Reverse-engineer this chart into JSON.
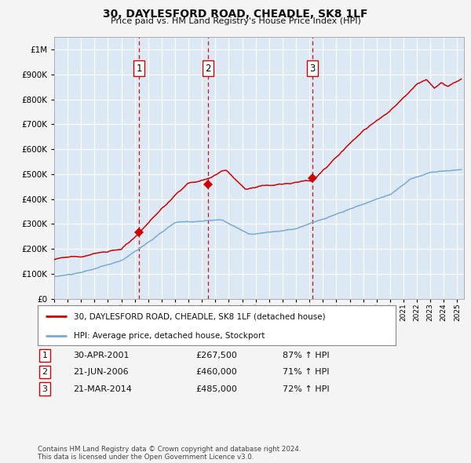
{
  "title": "30, DAYLESFORD ROAD, CHEADLE, SK8 1LF",
  "subtitle": "Price paid vs. HM Land Registry's House Price Index (HPI)",
  "fig_bg_color": "#f4f4f4",
  "plot_bg_color": "#dce9f5",
  "grid_color": "#ffffff",
  "hpi_line_color": "#7aaacf",
  "price_line_color": "#cc0000",
  "sale_marker_color": "#cc0000",
  "vline_color": "#cc0000",
  "sales": [
    {
      "date_num": 2001.33,
      "price": 267500,
      "label": "1",
      "date_str": "30-APR-2001",
      "pct": "87% ↑ HPI"
    },
    {
      "date_num": 2006.47,
      "price": 460000,
      "label": "2",
      "date_str": "21-JUN-2006",
      "pct": "71% ↑ HPI"
    },
    {
      "date_num": 2014.22,
      "price": 485000,
      "label": "3",
      "date_str": "21-MAR-2014",
      "pct": "72% ↑ HPI"
    }
  ],
  "legend_line1": "30, DAYLESFORD ROAD, CHEADLE, SK8 1LF (detached house)",
  "legend_line2": "HPI: Average price, detached house, Stockport",
  "footer": "Contains HM Land Registry data © Crown copyright and database right 2024.\nThis data is licensed under the Open Government Licence v3.0.",
  "xmin": 1995.0,
  "xmax": 2025.5,
  "ymin": 0,
  "ymax": 1050000,
  "title_fontsize": 10,
  "subtitle_fontsize": 8
}
